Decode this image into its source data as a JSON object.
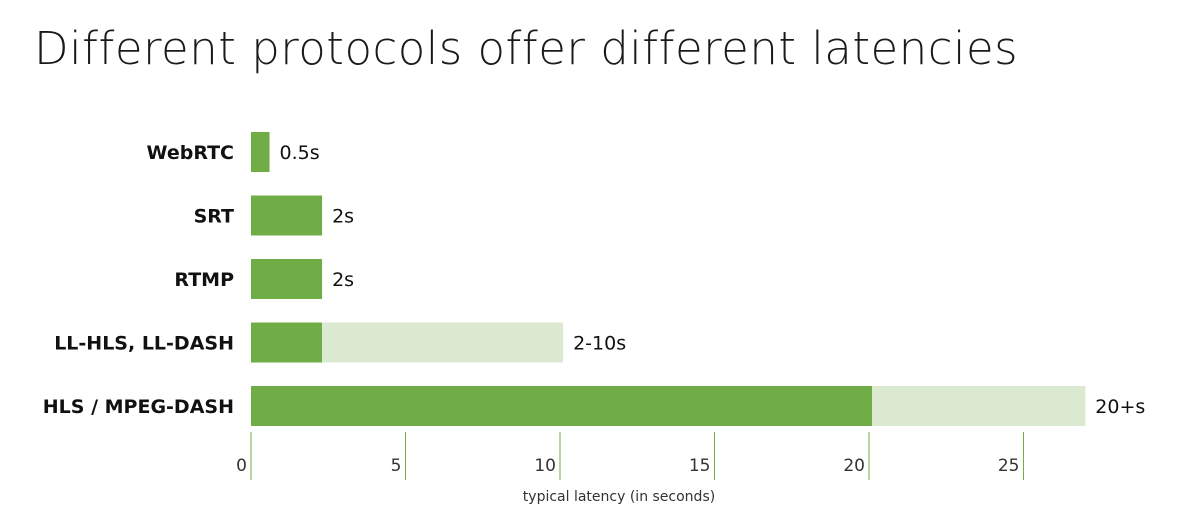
{
  "title": "Different protocols offer different latencies",
  "colors": {
    "primary": "#70ad47",
    "range": "#dbe9d1",
    "tick": "#70ad47"
  },
  "chart_data": {
    "type": "bar",
    "orientation": "horizontal",
    "stacked": true,
    "categories": [
      "WebRTC",
      "SRT",
      "RTMP",
      "LL-HLS, LL-DASH",
      "HLS / MPEG-DASH"
    ],
    "series": [
      {
        "values": [
          0.6,
          2.3,
          2.3,
          2.3,
          20.1
        ]
      },
      {
        "values": [
          0,
          0,
          0,
          7.8,
          6.9
        ]
      }
    ],
    "data_labels": [
      "0.5s",
      "2s",
      "2s",
      "2-10s",
      "20+s"
    ],
    "xlabel": "typical latency (in seconds)",
    "ylabel": "",
    "xlim": [
      0,
      27.5
    ],
    "xticks": [
      0,
      5,
      10,
      15,
      20,
      25
    ],
    "grid": false,
    "legend": "none"
  }
}
